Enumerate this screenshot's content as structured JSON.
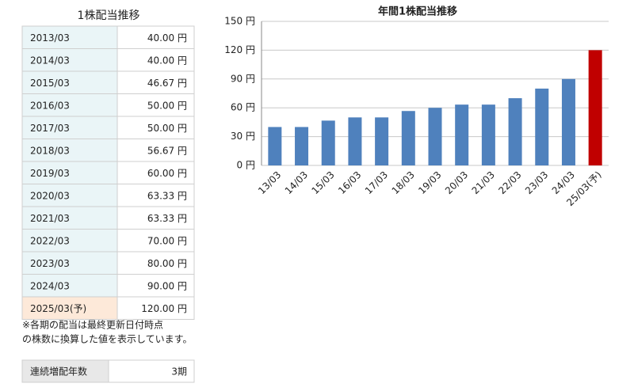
{
  "table": {
    "title": "1株配当推移",
    "rows": [
      [
        "2013/03",
        "40.00 円"
      ],
      [
        "2014/03",
        "40.00 円"
      ],
      [
        "2015/03",
        "46.67 円"
      ],
      [
        "2016/03",
        "50.00 円"
      ],
      [
        "2017/03",
        "50.00 円"
      ],
      [
        "2018/03",
        "56.67 円"
      ],
      [
        "2019/03",
        "60.00 円"
      ],
      [
        "2020/03",
        "63.33 円"
      ],
      [
        "2021/03",
        "63.33 円"
      ],
      [
        "2022/03",
        "70.00 円"
      ],
      [
        "2023/03",
        "80.00 円"
      ],
      [
        "2024/03",
        "90.00 円"
      ],
      [
        "2025/03(予)",
        "120.00 円"
      ]
    ],
    "note": [
      "※各期の配当は最終更新日付時点",
      "の株数に換算した値を表示しています。"
    ]
  },
  "summary": {
    "label": "連続増配年数",
    "value": "3期"
  },
  "chart_data": {
    "type": "bar",
    "title": "年間1株配当推移",
    "categories": [
      "13/03",
      "14/03",
      "15/03",
      "16/03",
      "17/03",
      "18/03",
      "19/03",
      "20/03",
      "21/03",
      "22/03",
      "23/03",
      "24/03",
      "25/03(予)"
    ],
    "values": [
      40,
      40,
      46.67,
      50,
      50,
      56.67,
      60,
      63.33,
      63.33,
      70,
      80,
      90,
      120
    ],
    "colors": [
      "#4f81bd",
      "#4f81bd",
      "#4f81bd",
      "#4f81bd",
      "#4f81bd",
      "#4f81bd",
      "#4f81bd",
      "#4f81bd",
      "#4f81bd",
      "#4f81bd",
      "#4f81bd",
      "#4f81bd",
      "#c00000"
    ],
    "ylim": [
      0,
      150
    ],
    "yticks": [
      {
        "value": 0,
        "label": "0 円"
      },
      {
        "value": 30,
        "label": "30 円"
      },
      {
        "value": 60,
        "label": "60 円"
      },
      {
        "value": 90,
        "label": "90 円"
      },
      {
        "value": 120,
        "label": "120 円"
      },
      {
        "value": 150,
        "label": "150 円"
      }
    ],
    "grid": true
  }
}
